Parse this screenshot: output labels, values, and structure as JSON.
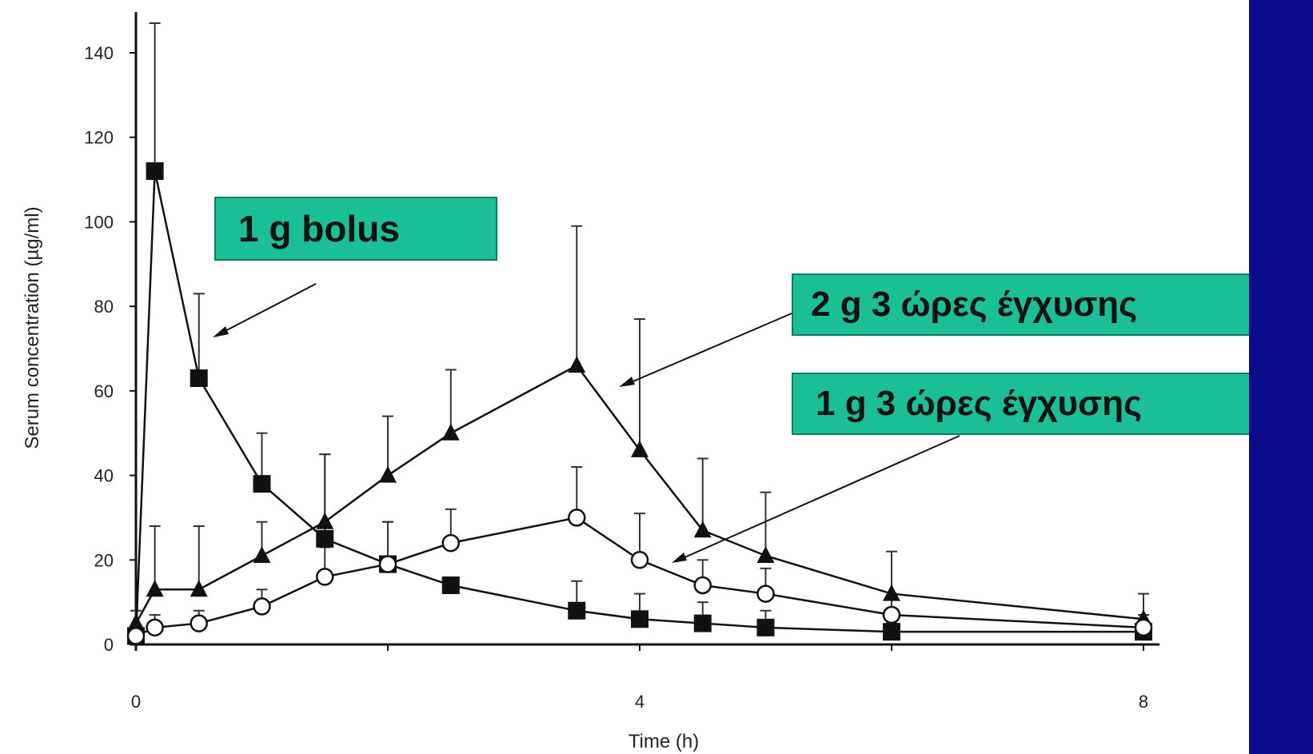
{
  "chart_data": {
    "type": "line",
    "ylabel": "Serum concentration (µg/ml)",
    "xlabel": "Time (h)",
    "ylim": [
      0,
      150
    ],
    "xlim": [
      0,
      8
    ],
    "yticks": [
      0,
      20,
      40,
      60,
      80,
      100,
      120,
      140
    ],
    "xticks": [
      0,
      4,
      8
    ],
    "grid": false,
    "series": [
      {
        "marker": "filled-square",
        "x": [
          0,
          0.15,
          0.5,
          1,
          1.5,
          2,
          2.5,
          3.5,
          4,
          4.5,
          5,
          6,
          8
        ],
        "y": [
          2,
          112,
          63,
          38,
          25,
          19,
          14,
          8,
          6,
          5,
          4,
          3,
          3
        ],
        "err": [
          2,
          35,
          20,
          12,
          20,
          10,
          0,
          7,
          6,
          5,
          4,
          2,
          2
        ]
      },
      {
        "marker": "filled-triangle",
        "x": [
          0,
          0.15,
          0.5,
          1,
          1.5,
          2,
          2.5,
          3.5,
          4,
          4.5,
          5,
          6,
          8
        ],
        "y": [
          5,
          13,
          13,
          21,
          29,
          40,
          50,
          66,
          46,
          27,
          21,
          12,
          6
        ],
        "err": [
          3,
          15,
          15,
          8,
          16,
          14,
          15,
          33,
          31,
          17,
          15,
          10,
          6
        ]
      },
      {
        "marker": "open-circle",
        "x": [
          0,
          0.15,
          0.5,
          1,
          1.5,
          2,
          2.5,
          3.5,
          4,
          4.5,
          5,
          6,
          8
        ],
        "y": [
          2,
          4,
          5,
          9,
          16,
          19,
          24,
          30,
          20,
          14,
          12,
          7,
          4
        ],
        "err": [
          2,
          3,
          3,
          4,
          7,
          10,
          8,
          12,
          11,
          6,
          6,
          4,
          3
        ]
      }
    ],
    "annotations": [
      {
        "text": "1 g  bolus"
      },
      {
        "text": "2 g  3 ώρες έγχυσης"
      },
      {
        "text": "1 g  3 ώρες έγχυσης"
      }
    ]
  },
  "colors": {
    "callout_bg": "#1bbf95",
    "side_band": "#0a0a8c",
    "ink": "#111111"
  }
}
